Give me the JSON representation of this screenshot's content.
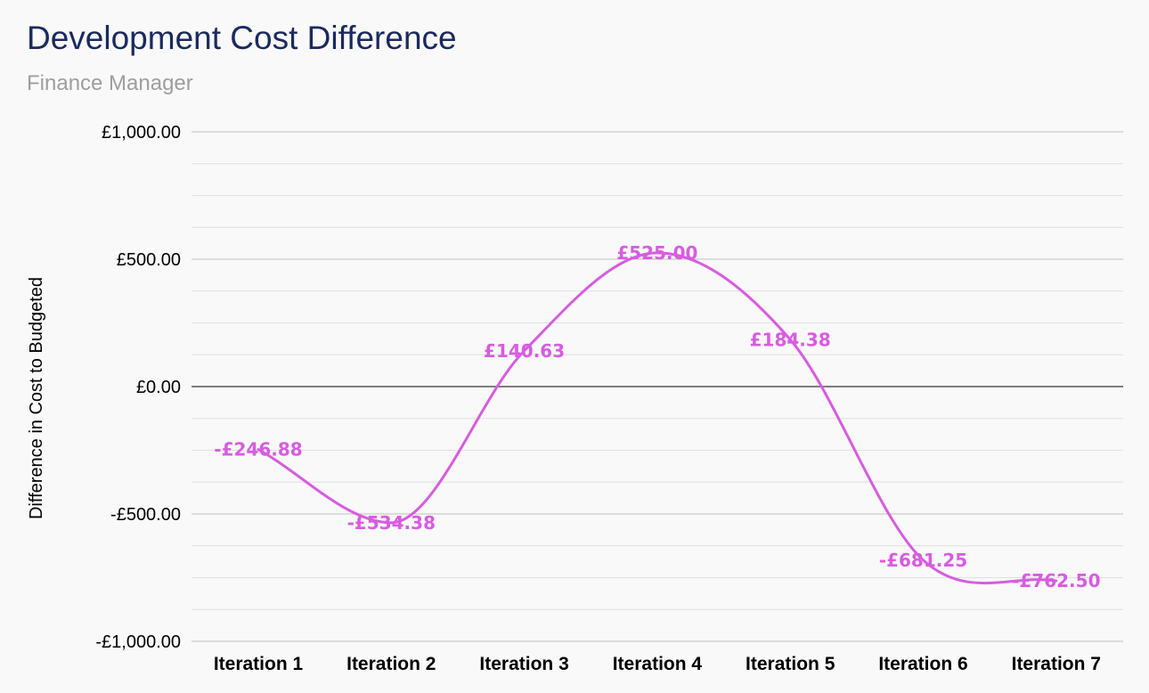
{
  "chart_data": {
    "type": "line",
    "title": "Development Cost Difference",
    "subtitle": "Finance Manager",
    "xlabel": "",
    "ylabel": "Difference in Cost to Budgeted",
    "categories": [
      "Iteration 1",
      "Iteration 2",
      "Iteration 3",
      "Iteration 4",
      "Iteration 5",
      "Iteration 6",
      "Iteration 7"
    ],
    "series": [
      {
        "values": [
          -246.88,
          -534.38,
          140.63,
          525.0,
          184.38,
          -681.25,
          -762.5
        ],
        "data_labels": [
          "-£246.88",
          "-£534.38",
          "£140.63",
          "£525.00",
          "£184.38",
          "-£681.25",
          "-£762.50"
        ],
        "color": "#d85ce0"
      }
    ],
    "ylim": [
      -1000,
      1000
    ],
    "yticks": [
      1000,
      500,
      0,
      -500,
      -1000
    ],
    "ytick_labels": [
      "£1,000.00",
      "£500.00",
      "£0.00",
      "-£500.00",
      "-£1,000.00"
    ],
    "minor_step": 125,
    "smooth": true,
    "grid": true,
    "legend": "none"
  },
  "colors": {
    "title": "#1a2a5e",
    "subtitle": "#9e9e9e",
    "major_grid": "#c0c0c0",
    "minor_grid": "#e0e0e0",
    "zero_line": "#333333",
    "line": "#d85ce0"
  }
}
